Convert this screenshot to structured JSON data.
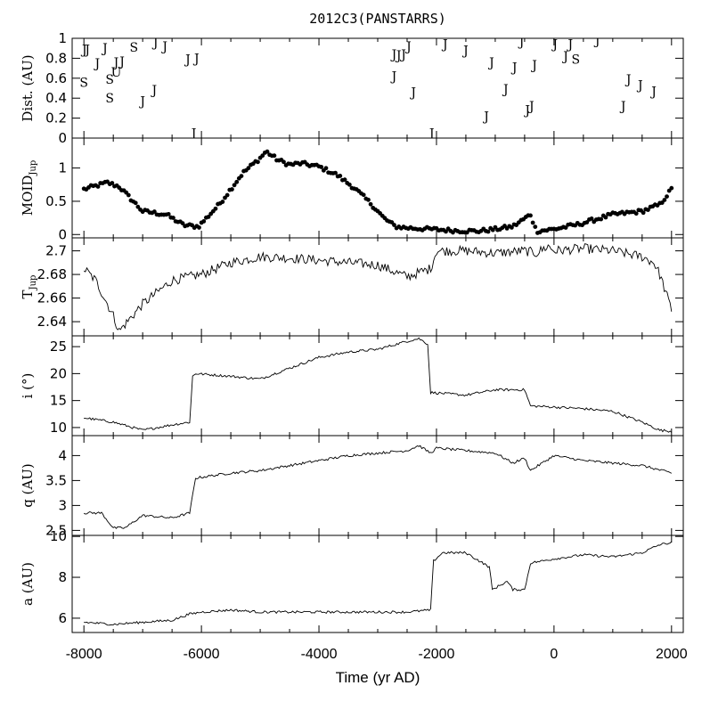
{
  "chart_data": {
    "type": "line",
    "title": "2012C3(PANSTARRS)",
    "xlabel": "Time (yr AD)",
    "xlim": [
      -8200,
      2200
    ],
    "x_ticks": [
      -8000,
      -6000,
      -4000,
      -2000,
      0,
      2000
    ],
    "x_tick_labels": [
      "-8000",
      "-6000",
      "-4000",
      "-2000",
      "0",
      "2000"
    ],
    "panels": [
      {
        "id": "dist",
        "type": "scatter",
        "ylabel": "Dist. (AU)",
        "ylim": [
          0,
          1
        ],
        "y_ticks": [
          0,
          0.2,
          0.4,
          0.6,
          0.8,
          1
        ],
        "y_tick_labels": [
          "0",
          "0.2",
          "0.4",
          "0.6",
          "0.8",
          "1"
        ],
        "encounters": [
          {
            "t": -7990,
            "d": 0.89,
            "p": "J"
          },
          {
            "t": -7940,
            "d": 0.89,
            "p": "J"
          },
          {
            "t": -8000,
            "d": 0.56,
            "p": "S"
          },
          {
            "t": -7770,
            "d": 0.75,
            "p": "J"
          },
          {
            "t": -7640,
            "d": 0.9,
            "p": "J"
          },
          {
            "t": -7560,
            "d": 0.59,
            "p": "S"
          },
          {
            "t": -7560,
            "d": 0.4,
            "p": "S"
          },
          {
            "t": -7450,
            "d": 0.76,
            "p": "J"
          },
          {
            "t": -7450,
            "d": 0.66,
            "p": "U"
          },
          {
            "t": -7350,
            "d": 0.77,
            "p": "J"
          },
          {
            "t": -7150,
            "d": 0.91,
            "p": "S"
          },
          {
            "t": -7000,
            "d": 0.37,
            "p": "J"
          },
          {
            "t": -6800,
            "d": 0.48,
            "p": "J"
          },
          {
            "t": -6780,
            "d": 0.96,
            "p": "J"
          },
          {
            "t": -6620,
            "d": 0.92,
            "p": "J"
          },
          {
            "t": -6230,
            "d": 0.79,
            "p": "J"
          },
          {
            "t": -6080,
            "d": 0.8,
            "p": "J"
          },
          {
            "t": -6130,
            "d": 0.05,
            "p": "J"
          },
          {
            "t": -2720,
            "d": 0.84,
            "p": "J"
          },
          {
            "t": -2640,
            "d": 0.83,
            "p": "J"
          },
          {
            "t": -2560,
            "d": 0.84,
            "p": "J"
          },
          {
            "t": -2470,
            "d": 0.92,
            "p": "J"
          },
          {
            "t": -2720,
            "d": 0.62,
            "p": "J"
          },
          {
            "t": -2390,
            "d": 0.46,
            "p": "J"
          },
          {
            "t": -2080,
            "d": 0.05,
            "p": "J"
          },
          {
            "t": -1850,
            "d": 0.94,
            "p": "J"
          },
          {
            "t": -1500,
            "d": 0.88,
            "p": "J"
          },
          {
            "t": -1060,
            "d": 0.76,
            "p": "J"
          },
          {
            "t": -1150,
            "d": 0.22,
            "p": "J"
          },
          {
            "t": -820,
            "d": 0.49,
            "p": "J"
          },
          {
            "t": -670,
            "d": 0.71,
            "p": "J"
          },
          {
            "t": -550,
            "d": 0.97,
            "p": "J"
          },
          {
            "t": -450,
            "d": 0.28,
            "p": "J"
          },
          {
            "t": -380,
            "d": 0.32,
            "p": "J"
          },
          {
            "t": -330,
            "d": 0.73,
            "p": "J"
          },
          {
            "t": 20,
            "d": 0.94,
            "p": "J"
          },
          {
            "t": 200,
            "d": 0.82,
            "p": "J"
          },
          {
            "t": 280,
            "d": 0.94,
            "p": "J"
          },
          {
            "t": 370,
            "d": 0.79,
            "p": "S"
          },
          {
            "t": 740,
            "d": 0.98,
            "p": "J"
          },
          {
            "t": 1180,
            "d": 0.32,
            "p": "J"
          },
          {
            "t": 1270,
            "d": 0.59,
            "p": "J"
          },
          {
            "t": 1470,
            "d": 0.53,
            "p": "J"
          },
          {
            "t": 1700,
            "d": 0.47,
            "p": "J"
          }
        ]
      },
      {
        "id": "moid",
        "type": "scatter",
        "ylabel": "MOID",
        "ylabel_sub": "Jup",
        "ylim": [
          -0.05,
          1.45
        ],
        "y_ticks": [
          0,
          0.5,
          1
        ],
        "y_tick_labels": [
          "0",
          "0.5",
          "1"
        ],
        "x": [
          -8000,
          -7600,
          -7400,
          -7000,
          -6600,
          -6300,
          -6050,
          -5700,
          -5300,
          -5000,
          -4900,
          -4700,
          -4500,
          -4300,
          -4000,
          -3700,
          -3400,
          -3100,
          -2900,
          -2700,
          -2500,
          -2100,
          -1700,
          -1300,
          -1000,
          -700,
          -400,
          -300,
          0,
          400,
          1000,
          1500,
          1800,
          2000
        ],
        "y": [
          0.68,
          0.78,
          0.72,
          0.35,
          0.3,
          0.14,
          0.12,
          0.45,
          0.92,
          1.15,
          1.25,
          1.12,
          1.05,
          1.07,
          1.02,
          0.9,
          0.7,
          0.45,
          0.25,
          0.12,
          0.1,
          0.08,
          0.06,
          0.05,
          0.08,
          0.12,
          0.3,
          0.05,
          0.08,
          0.15,
          0.3,
          0.35,
          0.45,
          0.68
        ]
      },
      {
        "id": "tjup",
        "type": "line",
        "ylabel": "T",
        "ylabel_sub": "Jup",
        "ylim": [
          2.628,
          2.711
        ],
        "y_ticks": [
          2.64,
          2.66,
          2.68,
          2.7
        ],
        "y_tick_labels": [
          "2.64",
          "2.66",
          "2.68",
          "2.7"
        ],
        "x": [
          -8000,
          -7800,
          -7500,
          -7400,
          -7000,
          -6500,
          -6000,
          -5500,
          -5000,
          -4500,
          -4000,
          -3500,
          -3000,
          -2500,
          -2100,
          -2000,
          -1500,
          -1000,
          -500,
          -300,
          -100,
          0,
          500,
          1000,
          1500,
          1700,
          1800,
          1900,
          2000
        ],
        "y": [
          2.685,
          2.675,
          2.645,
          2.632,
          2.655,
          2.675,
          2.68,
          2.69,
          2.695,
          2.694,
          2.692,
          2.69,
          2.688,
          2.678,
          2.685,
          2.7,
          2.7,
          2.698,
          2.7,
          2.698,
          2.704,
          2.7,
          2.702,
          2.7,
          2.695,
          2.69,
          2.68,
          2.665,
          2.65
        ]
      },
      {
        "id": "incl",
        "type": "line",
        "ylabel": "i (°)",
        "ylim": [
          8.5,
          27
        ],
        "y_ticks": [
          10,
          15,
          20,
          25
        ],
        "y_tick_labels": [
          "10",
          "15",
          "20",
          "25"
        ],
        "x": [
          -8000,
          -7500,
          -7000,
          -6500,
          -6200,
          -6150,
          -6100,
          -5500,
          -5000,
          -4500,
          -4000,
          -3500,
          -3000,
          -2500,
          -2300,
          -2150,
          -2100,
          -1500,
          -1000,
          -500,
          -400,
          0,
          500,
          1000,
          1500,
          1800,
          2000
        ],
        "y": [
          11.8,
          11.0,
          9.5,
          10.5,
          11.0,
          19.5,
          20.0,
          19.5,
          19.0,
          21.0,
          23.0,
          24.0,
          24.5,
          26.0,
          26.5,
          25.5,
          16.5,
          16.0,
          17.0,
          17.0,
          14.0,
          13.8,
          13.5,
          13.0,
          11.0,
          9.5,
          9.3
        ]
      },
      {
        "id": "q",
        "type": "line",
        "ylabel": "q (AU)",
        "ylim": [
          2.4,
          4.4
        ],
        "y_ticks": [
          2.5,
          3,
          3.5,
          4
        ],
        "y_tick_labels": [
          "2.5",
          "3",
          "3.5",
          "4"
        ],
        "x": [
          -8000,
          -7700,
          -7500,
          -7300,
          -7000,
          -6500,
          -6200,
          -6100,
          -5500,
          -5000,
          -4500,
          -4000,
          -3500,
          -3000,
          -2500,
          -2300,
          -2100,
          -2000,
          -1500,
          -1000,
          -700,
          -500,
          -400,
          0,
          500,
          1000,
          1500,
          2000
        ],
        "y": [
          2.85,
          2.85,
          2.55,
          2.55,
          2.8,
          2.75,
          2.85,
          3.55,
          3.65,
          3.7,
          3.8,
          3.9,
          4.0,
          4.05,
          4.1,
          4.2,
          4.05,
          4.15,
          4.1,
          4.05,
          3.85,
          3.95,
          3.7,
          4.0,
          3.9,
          3.85,
          3.8,
          3.65
        ]
      },
      {
        "id": "a",
        "type": "line",
        "ylabel": "a (AU)",
        "ylim": [
          5.3,
          10.05
        ],
        "y_ticks": [
          6,
          8,
          10
        ],
        "y_tick_labels": [
          "6",
          "8",
          "10"
        ],
        "x": [
          -8000,
          -7500,
          -7000,
          -6500,
          -6200,
          -6000,
          -5500,
          -5000,
          -4500,
          -4000,
          -3500,
          -3000,
          -2500,
          -2100,
          -2050,
          -1900,
          -1500,
          -1100,
          -1050,
          -800,
          -700,
          -500,
          -400,
          0,
          500,
          1000,
          1500,
          1800,
          2000
        ],
        "y": [
          5.8,
          5.7,
          5.8,
          5.9,
          6.2,
          6.3,
          6.4,
          6.3,
          6.3,
          6.3,
          6.3,
          6.3,
          6.3,
          6.4,
          8.8,
          9.2,
          9.2,
          8.5,
          7.4,
          7.8,
          7.4,
          7.4,
          8.7,
          8.9,
          9.1,
          9.0,
          9.2,
          9.6,
          9.7
        ]
      }
    ]
  }
}
